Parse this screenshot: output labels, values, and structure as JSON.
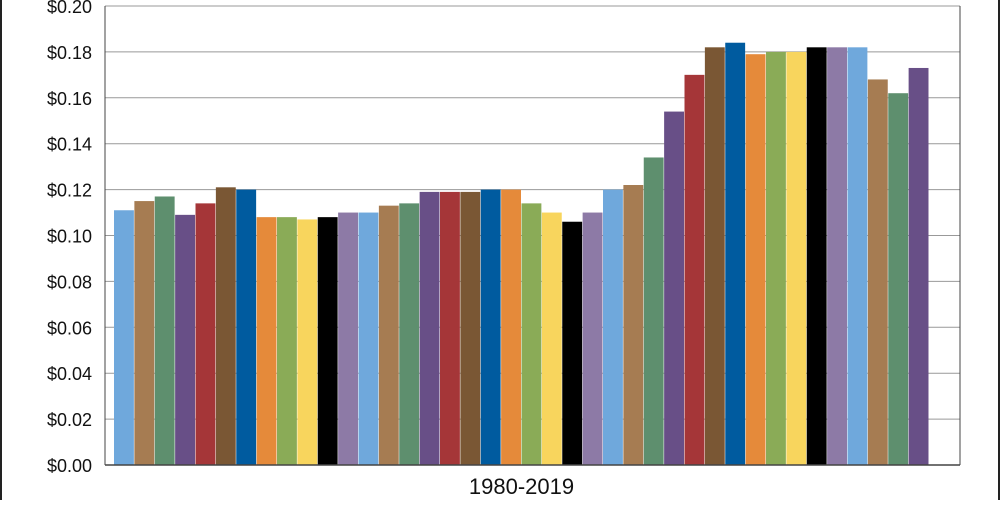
{
  "chart_data": {
    "type": "bar",
    "title": "",
    "xlabel": "1980-2019",
    "ylabel": "",
    "ylim": [
      0,
      0.2
    ],
    "yticks": [
      "$0.00",
      "$0.02",
      "$0.04",
      "$0.06",
      "$0.08",
      "$0.10",
      "$0.12",
      "$0.14",
      "$0.16",
      "$0.18",
      "$0.20"
    ],
    "ytick_values": [
      0,
      0.02,
      0.04,
      0.06,
      0.08,
      0.1,
      0.12,
      0.14,
      0.16,
      0.18,
      0.2
    ],
    "grid": true,
    "legend": "none",
    "values": [
      0.111,
      0.115,
      0.117,
      0.109,
      0.114,
      0.121,
      0.12,
      0.108,
      0.108,
      0.107,
      0.108,
      0.11,
      0.11,
      0.113,
      0.114,
      0.119,
      0.119,
      0.119,
      0.12,
      0.12,
      0.114,
      0.11,
      0.106,
      0.11,
      0.12,
      0.122,
      0.134,
      0.154,
      0.17,
      0.182,
      0.184,
      0.179,
      0.18,
      0.18,
      0.182,
      0.182,
      0.182,
      0.168,
      0.162,
      0.173
    ],
    "colors": [
      "#6fa8dc",
      "#a67c52",
      "#5e8f6e",
      "#684f87",
      "#a53638",
      "#7a5734",
      "#005b9f",
      "#e58a3a",
      "#8aab57",
      "#f8d55d",
      "#000000",
      "#8d7aa6",
      "#6fa8dc",
      "#a67c52",
      "#5e8f6e",
      "#684f87",
      "#a53638",
      "#7a5734",
      "#005b9f",
      "#e58a3a",
      "#8aab57",
      "#f8d55d",
      "#000000",
      "#8d7aa6",
      "#6fa8dc",
      "#a67c52",
      "#5e8f6e",
      "#684f87",
      "#a53638",
      "#7a5734",
      "#005b9f",
      "#e58a3a",
      "#8aab57",
      "#f8d55d",
      "#000000",
      "#8d7aa6",
      "#6fa8dc",
      "#a67c52",
      "#5e8f6e",
      "#684f87"
    ],
    "gridline_color": "#999999",
    "axis_color": "#444444"
  }
}
